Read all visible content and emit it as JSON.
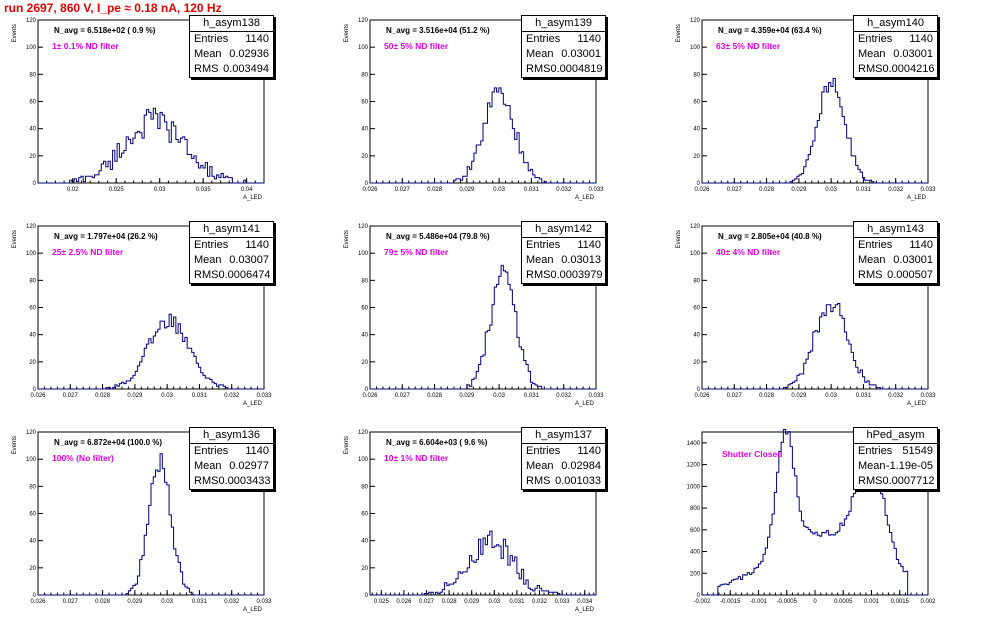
{
  "title": "run 2697,   860 V, I_pe ≈ 0.18 nA, 120 Hz",
  "colors": {
    "title": "#e00000",
    "hist": "#00007f",
    "filter_label": "#e000e0"
  },
  "chart_data": [
    {
      "type": "histogram",
      "name": "h_asym138",
      "grid": false,
      "navg": "N_avg = 6.518e+02 ( 0.9 %)",
      "filter": "1± 0.1% ND filter",
      "stats": {
        "entries": "1140",
        "mean": "0.02936",
        "rms": "0.003494"
      },
      "xlabel": "A_LED",
      "ylabel": "Events",
      "xlim": [
        0.016,
        0.042
      ],
      "ylim": [
        0,
        120
      ],
      "xticks": [
        0.02,
        0.025,
        0.03,
        0.035,
        0.04
      ],
      "xticklabels": [
        "0.02",
        "0.025",
        "0.03",
        "0.035",
        "0.04"
      ],
      "yticks": [
        0,
        20,
        40,
        60,
        80,
        100,
        120
      ],
      "bins": [
        0.0195,
        0.04
      ],
      "mean": 0.02936,
      "sigma": 0.0035,
      "peak": 45,
      "noise": 7,
      "seed": 138
    },
    {
      "type": "histogram",
      "name": "h_asym139",
      "grid": false,
      "navg": "N_avg = 3.516e+04 (51.2 %)",
      "filter": "50± 5% ND filter",
      "stats": {
        "entries": "1140",
        "mean": "0.03001",
        "rms": "0.0004819"
      },
      "xlabel": "A_LED",
      "ylabel": "Events",
      "xlim": [
        0.026,
        0.033
      ],
      "ylim": [
        0,
        120
      ],
      "xticks": [
        0.026,
        0.027,
        0.028,
        0.029,
        0.03,
        0.031,
        0.032,
        0.033
      ],
      "xticklabels": [
        "0.026",
        "0.027",
        "0.028",
        "0.029",
        "0.03",
        "0.031",
        "0.032",
        "0.033"
      ],
      "yticks": [
        0,
        20,
        40,
        60,
        80,
        100,
        120
      ],
      "bins": [
        0.0285,
        0.0316
      ],
      "mean": 0.03001,
      "sigma": 0.00048,
      "peak": 66,
      "noise": 5,
      "seed": 139
    },
    {
      "type": "histogram",
      "name": "h_asym140",
      "grid": false,
      "navg": "N_avg = 4.359e+04 (63.4 %)",
      "filter": "63± 5% ND filter",
      "stats": {
        "entries": "1140",
        "mean": "0.03001",
        "rms": "0.0004216"
      },
      "xlabel": "A_LED",
      "ylabel": "Events",
      "xlim": [
        0.026,
        0.033
      ],
      "ylim": [
        0,
        120
      ],
      "xticks": [
        0.026,
        0.027,
        0.028,
        0.029,
        0.03,
        0.031,
        0.032,
        0.033
      ],
      "xticklabels": [
        "0.026",
        "0.027",
        "0.028",
        "0.029",
        "0.03",
        "0.031",
        "0.032",
        "0.033"
      ],
      "yticks": [
        0,
        20,
        40,
        60,
        80,
        100,
        120
      ],
      "bins": [
        0.0287,
        0.0313
      ],
      "mean": 0.03001,
      "sigma": 0.00042,
      "peak": 75,
      "noise": 4,
      "seed": 140
    },
    {
      "type": "histogram",
      "name": "h_asym141",
      "grid": false,
      "navg": "N_avg = 1.797e+04 (26.2 %)",
      "filter": "25± 2.5% ND filter",
      "stats": {
        "entries": "1140",
        "mean": "0.03007",
        "rms": "0.0006474"
      },
      "xlabel": "A_LED",
      "ylabel": "Events",
      "xlim": [
        0.026,
        0.033
      ],
      "ylim": [
        0,
        120
      ],
      "xticks": [
        0.026,
        0.027,
        0.028,
        0.029,
        0.03,
        0.031,
        0.032,
        0.033
      ],
      "xticklabels": [
        "0.026",
        "0.027",
        "0.028",
        "0.029",
        "0.03",
        "0.031",
        "0.032",
        "0.033"
      ],
      "yticks": [
        0,
        20,
        40,
        60,
        80,
        100,
        120
      ],
      "bins": [
        0.0279,
        0.0322
      ],
      "mean": 0.03007,
      "sigma": 0.00065,
      "peak": 50,
      "noise": 4,
      "seed": 141
    },
    {
      "type": "histogram",
      "name": "h_asym142",
      "grid": false,
      "navg": "N_avg = 5.486e+04 (79.8 %)",
      "filter": "79± 5% ND filter",
      "stats": {
        "entries": "1140",
        "mean": "0.03013",
        "rms": "0.0003979"
      },
      "xlabel": "A_LED",
      "ylabel": "Events",
      "xlim": [
        0.026,
        0.033
      ],
      "ylim": [
        0,
        120
      ],
      "xticks": [
        0.026,
        0.027,
        0.028,
        0.029,
        0.03,
        0.031,
        0.032,
        0.033
      ],
      "xticklabels": [
        "0.026",
        "0.027",
        "0.028",
        "0.029",
        "0.03",
        "0.031",
        "0.032",
        "0.033"
      ],
      "yticks": [
        0,
        20,
        40,
        60,
        80,
        100,
        120
      ],
      "bins": [
        0.0288,
        0.0314
      ],
      "mean": 0.03013,
      "sigma": 0.0004,
      "peak": 86,
      "noise": 6,
      "seed": 142
    },
    {
      "type": "histogram",
      "name": "h_asym143",
      "grid": false,
      "navg": "N_avg = 2.805e+04 (40.8 %)",
      "filter": "40± 4% ND filter",
      "stats": {
        "entries": "1140",
        "mean": "0.03001",
        "rms": "0.000507"
      },
      "xlabel": "A_LED",
      "ylabel": "Events",
      "xlim": [
        0.026,
        0.033
      ],
      "ylim": [
        0,
        120
      ],
      "xticks": [
        0.026,
        0.027,
        0.028,
        0.029,
        0.03,
        0.031,
        0.032,
        0.033
      ],
      "xticklabels": [
        "0.026",
        "0.027",
        "0.028",
        "0.029",
        "0.03",
        "0.031",
        "0.032",
        "0.033"
      ],
      "yticks": [
        0,
        20,
        40,
        60,
        80,
        100,
        120
      ],
      "bins": [
        0.0285,
        0.0317
      ],
      "mean": 0.03001,
      "sigma": 0.0005,
      "peak": 65,
      "noise": 5,
      "seed": 143
    },
    {
      "type": "histogram",
      "name": "h_asym136",
      "grid": false,
      "navg": "N_avg = 6.872e+04 (100.0 %)",
      "filter": "100% (No filter)",
      "stats": {
        "entries": "1140",
        "mean": "0.02977",
        "rms": "0.0003433"
      },
      "xlabel": "A_LED",
      "ylabel": "Events",
      "xlim": [
        0.026,
        0.033
      ],
      "ylim": [
        0,
        120
      ],
      "xticks": [
        0.026,
        0.027,
        0.028,
        0.029,
        0.03,
        0.031,
        0.032,
        0.033
      ],
      "xticklabels": [
        "0.026",
        "0.027",
        "0.028",
        "0.029",
        "0.03",
        "0.031",
        "0.032",
        "0.033"
      ],
      "yticks": [
        0,
        20,
        40,
        60,
        80,
        100,
        120
      ],
      "bins": [
        0.0287,
        0.0309
      ],
      "mean": 0.02977,
      "sigma": 0.00034,
      "peak": 98,
      "noise": 5,
      "seed": 136
    },
    {
      "type": "histogram",
      "name": "h_asym137",
      "grid": false,
      "navg": "N_avg = 6.604e+03 ( 9.6 %)",
      "filter": "10± 1% ND filter",
      "stats": {
        "entries": "1140",
        "mean": "0.02984",
        "rms": "0.001033"
      },
      "xlabel": "A_LED",
      "ylabel": "Events",
      "xlim": [
        0.0245,
        0.0345
      ],
      "ylim": [
        0,
        120
      ],
      "xticks": [
        0.025,
        0.026,
        0.027,
        0.028,
        0.029,
        0.03,
        0.031,
        0.032,
        0.033,
        0.034
      ],
      "xticklabels": [
        "0.025",
        "0.026",
        "0.027",
        "0.028",
        "0.029",
        "0.03",
        "0.031",
        "0.032",
        "0.033",
        "0.034"
      ],
      "yticks": [
        0,
        20,
        40,
        60,
        80,
        100,
        120
      ],
      "bins": [
        0.0268,
        0.033
      ],
      "mean": 0.02984,
      "sigma": 0.001,
      "peak": 40,
      "noise": 6,
      "seed": 137
    },
    {
      "type": "histogram",
      "name": "hPed_asym",
      "grid": false,
      "navg": "",
      "filter": "Shutter Closed",
      "stats": {
        "entries": "51549",
        "mean": "-1.19e-05",
        "rms": "0.0007712"
      },
      "xlabel": "",
      "ylabel": "",
      "xlim": [
        -0.002,
        0.002
      ],
      "ylim": [
        0,
        1500
      ],
      "xticks": [
        -0.002,
        -0.0015,
        -0.001,
        -0.0005,
        0,
        0.0005,
        0.001,
        0.0015,
        0.002
      ],
      "xticklabels": [
        "-0.002",
        "-0.0015",
        "-0.001",
        "-0.0005",
        "0",
        "0.0005",
        "0.001",
        "0.0015",
        "0.002"
      ],
      "yticks": [
        0,
        200,
        400,
        600,
        800,
        1000,
        1200,
        1400
      ],
      "bins": [
        -0.0017,
        0.00165
      ],
      "components": [
        {
          "mean": -0.00052,
          "sigma": 0.00016,
          "amp": 1080
        },
        {
          "mean": 0.00098,
          "sigma": 0.00024,
          "amp": 880
        },
        {
          "mean": 0.0002,
          "sigma": 0.00095,
          "amp": 560
        }
      ],
      "noise": 30,
      "seed": 999
    }
  ]
}
